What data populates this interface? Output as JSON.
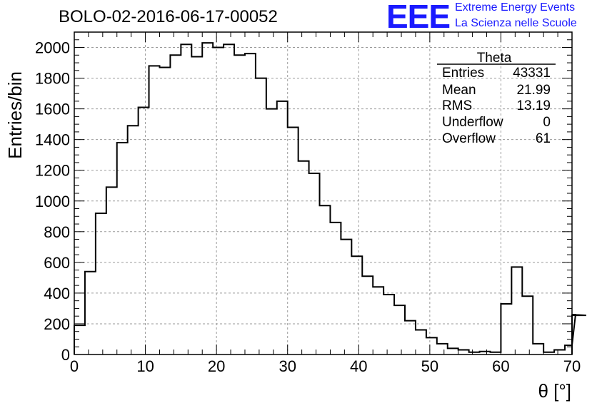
{
  "chart_data": {
    "type": "histogram",
    "title": "BOLO-02-2016-06-17-00052",
    "xlabel": "θ [°]",
    "ylabel": "Entries/bin",
    "xlim": [
      0,
      70
    ],
    "ylim": [
      0,
      2100
    ],
    "bin_width": 1.5,
    "bin_start": 0,
    "xticks": [
      0,
      10,
      20,
      30,
      40,
      50,
      60,
      70
    ],
    "yticks": [
      0,
      200,
      400,
      600,
      800,
      1000,
      1200,
      1400,
      1600,
      1800,
      2000
    ],
    "grid": true,
    "values": [
      190,
      540,
      920,
      1090,
      1380,
      1490,
      1610,
      1880,
      1870,
      1950,
      2020,
      1940,
      2030,
      2000,
      2020,
      1950,
      1960,
      1800,
      1600,
      1650,
      1480,
      1260,
      1180,
      970,
      860,
      750,
      640,
      510,
      440,
      390,
      320,
      220,
      160,
      110,
      70,
      40,
      30,
      15,
      20,
      15,
      330,
      570,
      380,
      70,
      15,
      30,
      60,
      260,
      255
    ]
  },
  "stats": {
    "name": "Theta",
    "rows": [
      {
        "label": "Entries",
        "value": "43331"
      },
      {
        "label": "Mean",
        "value": "21.99"
      },
      {
        "label": "RMS",
        "value": "13.19"
      },
      {
        "label": "Underflow",
        "value": "0"
      },
      {
        "label": "Overflow",
        "value": "61"
      }
    ]
  },
  "logo": {
    "mark": "EEE",
    "line1": "Extreme Energy Events",
    "line2": "La Scienza nelle Scuole"
  },
  "colors": {
    "logo": "#1a1aff",
    "line": "#000000",
    "grid": "#9a9a9a"
  }
}
